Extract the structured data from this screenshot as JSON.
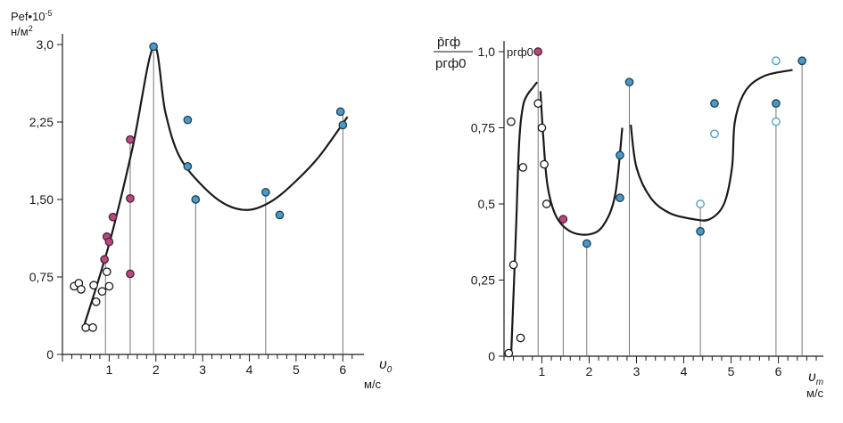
{
  "chart_data": [
    {
      "type": "scatter",
      "ylabel": "Pef•10",
      "ylabel_exp": "-5",
      "yunit": "н/м",
      "yunit_exp": "2",
      "xlabel": "υ",
      "xlabel_sub": "0",
      "xunit": "м/с",
      "xlim": [
        0,
        6.3
      ],
      "ylim": [
        0,
        3.0
      ],
      "xticks": [
        1,
        2,
        3,
        4,
        5,
        6
      ],
      "xtick_labels": [
        "1",
        "2",
        "3",
        "4",
        "5",
        "6"
      ],
      "yticks": [
        0,
        0.75,
        1.5,
        2.25,
        3.0
      ],
      "ytick_labels": [
        "0",
        "0,75",
        "1,50",
        "2,25",
        "3,0"
      ],
      "grid": false,
      "colors": {
        "blue": "#4a9ac4",
        "magenta": "#c0457e",
        "open": "#ffffff",
        "curve": "#1a1a1a"
      },
      "series": [
        {
          "kind": "open",
          "points": [
            [
              0.25,
              0.66
            ],
            [
              0.35,
              0.69
            ],
            [
              0.4,
              0.63
            ],
            [
              0.5,
              0.26
            ],
            [
              0.65,
              0.26
            ],
            [
              0.67,
              0.67
            ],
            [
              0.72,
              0.51
            ],
            [
              0.85,
              0.61
            ],
            [
              0.95,
              0.8
            ],
            [
              1.0,
              0.66
            ]
          ]
        },
        {
          "kind": "magenta",
          "points": [
            [
              0.9,
              0.92
            ],
            [
              0.95,
              1.14
            ],
            [
              1.0,
              1.09
            ],
            [
              1.08,
              1.33
            ],
            [
              1.45,
              2.08
            ],
            [
              1.45,
              1.51
            ],
            [
              1.45,
              0.78
            ]
          ]
        },
        {
          "kind": "blue",
          "points": [
            [
              1.95,
              2.98
            ],
            [
              2.68,
              2.27
            ],
            [
              2.68,
              1.82
            ],
            [
              2.85,
              1.5
            ],
            [
              4.35,
              1.57
            ],
            [
              4.65,
              1.35
            ],
            [
              5.95,
              2.35
            ],
            [
              6.0,
              2.22
            ]
          ]
        }
      ],
      "curve": [
        [
          0.45,
          0.26
        ],
        [
          1.0,
          1.07
        ],
        [
          1.5,
          2.0
        ],
        [
          1.95,
          2.98
        ],
        [
          2.2,
          2.35
        ],
        [
          2.5,
          1.92
        ],
        [
          3.0,
          1.63
        ],
        [
          3.5,
          1.45
        ],
        [
          4.0,
          1.4
        ],
        [
          4.5,
          1.49
        ],
        [
          5.0,
          1.68
        ],
        [
          5.5,
          1.92
        ],
        [
          6.1,
          2.3
        ]
      ],
      "drop_lines": [
        [
          0.92,
          0.92
        ],
        [
          1.45,
          2.08
        ],
        [
          1.95,
          2.98
        ],
        [
          2.85,
          1.5
        ],
        [
          4.35,
          1.57
        ],
        [
          6.0,
          2.35
        ]
      ]
    },
    {
      "type": "scatter",
      "ylabel_num": "p̄гф",
      "ylabel_den": "pгф0",
      "peak_label": "pгф0",
      "xlabel": "υ",
      "xlabel_sub": "m",
      "xunit": "м/с",
      "xlim": [
        0.2,
        6.8
      ],
      "ylim": [
        0,
        1.0
      ],
      "xticks": [
        1,
        2,
        3,
        4,
        5,
        6
      ],
      "xtick_labels": [
        "1",
        "2",
        "3",
        "4",
        "5",
        "6"
      ],
      "yticks": [
        0,
        0.25,
        0.5,
        0.75,
        1.0
      ],
      "ytick_labels": [
        "0",
        "0,25",
        "0,5",
        "0,75",
        "1,0"
      ],
      "grid": false,
      "series": [
        {
          "kind": "open",
          "points": [
            [
              0.3,
              0.01
            ],
            [
              0.35,
              0.77
            ],
            [
              0.4,
              0.3
            ],
            [
              0.55,
              0.06
            ],
            [
              0.6,
              0.62
            ],
            [
              0.92,
              0.83
            ],
            [
              1.0,
              0.75
            ],
            [
              1.05,
              0.63
            ],
            [
              1.1,
              0.5
            ]
          ]
        },
        {
          "kind": "magenta",
          "points": [
            [
              0.92,
              1.0
            ],
            [
              1.45,
              0.45
            ]
          ]
        },
        {
          "kind": "blue",
          "points": [
            [
              1.95,
              0.37
            ],
            [
              2.65,
              0.66
            ],
            [
              2.65,
              0.52
            ],
            [
              2.85,
              0.9
            ],
            [
              4.35,
              0.41
            ],
            [
              4.65,
              0.83
            ],
            [
              5.95,
              0.83
            ],
            [
              6.5,
              0.97
            ]
          ]
        },
        {
          "kind": "open-blue",
          "points": [
            [
              4.35,
              0.5
            ],
            [
              4.65,
              0.73
            ],
            [
              5.95,
              0.97
            ],
            [
              5.95,
              0.77
            ]
          ]
        }
      ],
      "curves": [
        [
          [
            0.35,
            0.0
          ],
          [
            0.45,
            0.4
          ],
          [
            0.52,
            0.7
          ],
          [
            0.6,
            0.82
          ],
          [
            0.7,
            0.86
          ],
          [
            0.8,
            0.88
          ],
          [
            0.9,
            0.9
          ]
        ],
        [
          [
            0.97,
            0.87
          ],
          [
            1.03,
            0.72
          ],
          [
            1.12,
            0.56
          ],
          [
            1.3,
            0.46
          ],
          [
            1.6,
            0.41
          ],
          [
            2.0,
            0.4
          ],
          [
            2.3,
            0.43
          ],
          [
            2.55,
            0.53
          ],
          [
            2.7,
            0.75
          ]
        ],
        [
          [
            2.88,
            0.76
          ],
          [
            3.0,
            0.62
          ],
          [
            3.3,
            0.52
          ],
          [
            3.7,
            0.47
          ],
          [
            4.2,
            0.45
          ],
          [
            4.55,
            0.45
          ],
          [
            4.85,
            0.5
          ],
          [
            5.02,
            0.62
          ],
          [
            5.08,
            0.77
          ],
          [
            5.3,
            0.87
          ],
          [
            5.7,
            0.92
          ],
          [
            6.3,
            0.94
          ]
        ]
      ],
      "drop_lines": [
        [
          0.92,
          1.0
        ],
        [
          1.45,
          0.45
        ],
        [
          1.95,
          0.37
        ],
        [
          2.85,
          0.9
        ],
        [
          4.35,
          0.5
        ],
        [
          5.95,
          0.83
        ],
        [
          6.5,
          0.97
        ]
      ]
    }
  ]
}
